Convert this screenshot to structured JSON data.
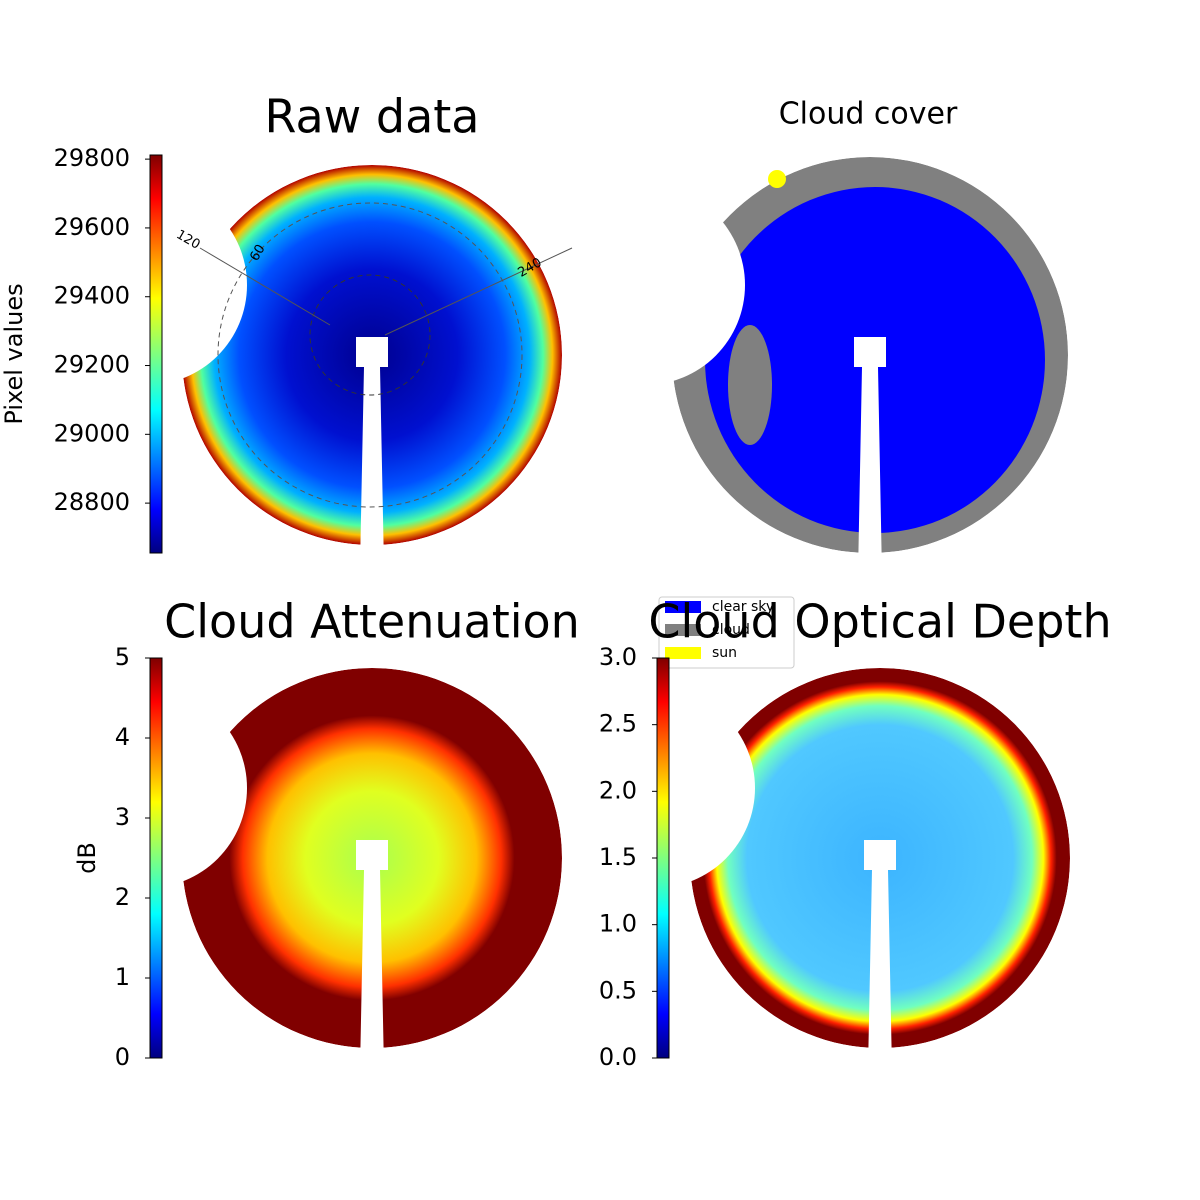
{
  "chart_data": [
    {
      "type": "image",
      "title": "Raw data",
      "colorbar": {
        "label": "Pixel values",
        "colormap": "jet",
        "lim": [
          28655,
          29812
        ],
        "ticks": [
          28800,
          29000,
          29200,
          29400,
          29600,
          29800
        ]
      },
      "azimuth_labels": [
        "120",
        "60",
        "240"
      ]
    },
    {
      "type": "image",
      "title": "Cloud cover",
      "legend": [
        {
          "name": "clear sky",
          "color": "#0000ff"
        },
        {
          "name": "cloud",
          "color": "#808080"
        },
        {
          "name": "sun",
          "color": "#ffff00"
        }
      ]
    },
    {
      "type": "image",
      "title": "Cloud Attenuation",
      "colorbar": {
        "label": "dB",
        "colormap": "jet",
        "lim": [
          0,
          5
        ],
        "ticks": [
          0,
          1,
          2,
          3,
          4,
          5
        ]
      }
    },
    {
      "type": "image",
      "title": "Cloud Optical Depth",
      "colorbar": {
        "colormap": "jet",
        "lim": [
          0,
          3
        ],
        "ticks": [
          {
            "value": 0,
            "label": "0.0"
          },
          {
            "value": 0.5,
            "label": "0.5"
          },
          {
            "value": 1,
            "label": "1.0"
          },
          {
            "value": 1.5,
            "label": "1.5"
          },
          {
            "value": 2,
            "label": "2.0"
          },
          {
            "value": 2.5,
            "label": "2.5"
          },
          {
            "value": 3,
            "label": "3.0"
          }
        ]
      }
    }
  ]
}
